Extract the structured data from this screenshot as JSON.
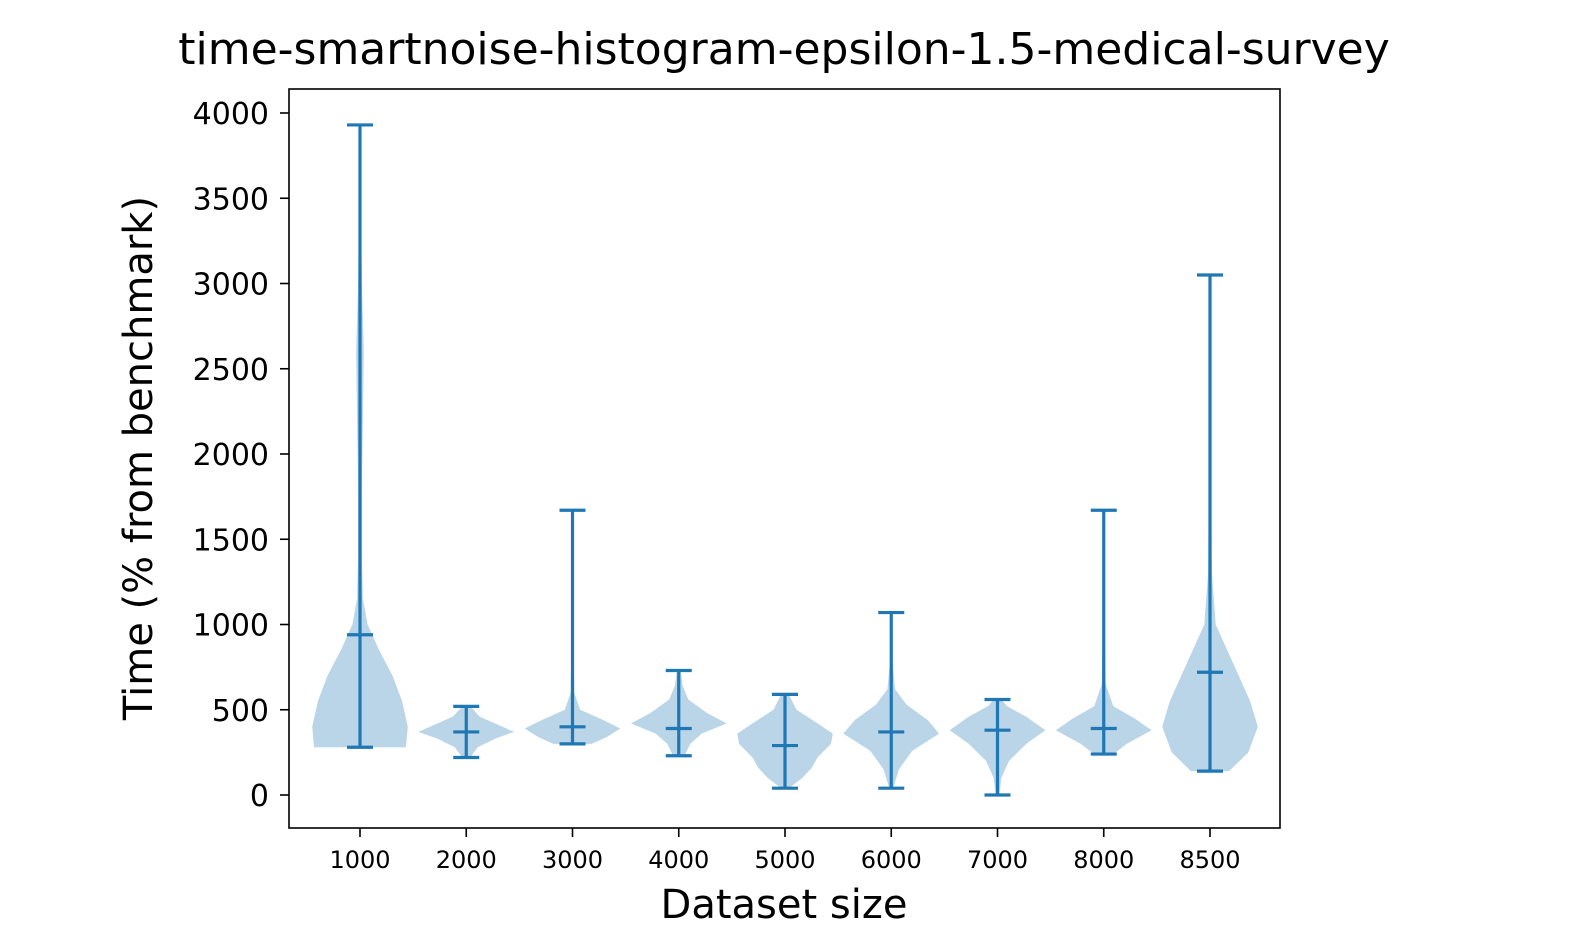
{
  "chart_data": {
    "type": "violin",
    "title": "time-smartnoise-histogram-epsilon-1.5-medical-survey",
    "xlabel": "Dataset size",
    "ylabel": "Time (% from benchmark)",
    "ylim": [
      -190,
      4130
    ],
    "yticks": [
      0,
      500,
      1000,
      1500,
      2000,
      2500,
      3000,
      3500,
      4000
    ],
    "grid": false,
    "colors": {
      "line": "#1f77b4",
      "fill": "#b9d3e8"
    },
    "categories": [
      "1000",
      "2000",
      "3000",
      "4000",
      "5000",
      "6000",
      "7000",
      "8000",
      "8500"
    ],
    "violins": [
      {
        "category": "1000",
        "min": 280,
        "max": 3930,
        "median": 940,
        "density": [
          [
            280,
            0.48
          ],
          [
            400,
            0.5
          ],
          [
            550,
            0.44
          ],
          [
            700,
            0.34
          ],
          [
            850,
            0.2
          ],
          [
            1000,
            0.08
          ],
          [
            1150,
            0.03
          ],
          [
            1400,
            0.02
          ],
          [
            1800,
            0.02
          ],
          [
            2200,
            0.03
          ],
          [
            2600,
            0.04
          ],
          [
            3000,
            0.02
          ],
          [
            3400,
            0.01
          ]
        ]
      },
      {
        "category": "2000",
        "min": 220,
        "max": 520,
        "median": 370,
        "density": [
          [
            220,
            0.04
          ],
          [
            280,
            0.12
          ],
          [
            330,
            0.3
          ],
          [
            370,
            0.5
          ],
          [
            410,
            0.34
          ],
          [
            460,
            0.14
          ],
          [
            520,
            0.04
          ]
        ]
      },
      {
        "category": "3000",
        "min": 300,
        "max": 1670,
        "median": 400,
        "density": [
          [
            300,
            0.2
          ],
          [
            340,
            0.36
          ],
          [
            390,
            0.5
          ],
          [
            440,
            0.32
          ],
          [
            500,
            0.08
          ],
          [
            600,
            0.02
          ],
          [
            900,
            0.01
          ],
          [
            1400,
            0.01
          ],
          [
            1670,
            0.0
          ]
        ]
      },
      {
        "category": "4000",
        "min": 230,
        "max": 730,
        "median": 390,
        "density": [
          [
            230,
            0.06
          ],
          [
            300,
            0.12
          ],
          [
            360,
            0.24
          ],
          [
            420,
            0.5
          ],
          [
            480,
            0.3
          ],
          [
            560,
            0.1
          ],
          [
            640,
            0.04
          ],
          [
            730,
            0.02
          ]
        ]
      },
      {
        "category": "5000",
        "min": 40,
        "max": 590,
        "median": 290,
        "density": [
          [
            40,
            0.04
          ],
          [
            100,
            0.18
          ],
          [
            160,
            0.28
          ],
          [
            220,
            0.34
          ],
          [
            300,
            0.48
          ],
          [
            360,
            0.5
          ],
          [
            420,
            0.34
          ],
          [
            500,
            0.12
          ],
          [
            590,
            0.04
          ]
        ]
      },
      {
        "category": "6000",
        "min": 40,
        "max": 1070,
        "median": 370,
        "density": [
          [
            40,
            0.02
          ],
          [
            150,
            0.08
          ],
          [
            260,
            0.22
          ],
          [
            360,
            0.5
          ],
          [
            440,
            0.38
          ],
          [
            530,
            0.16
          ],
          [
            620,
            0.04
          ],
          [
            800,
            0.01
          ],
          [
            1070,
            0.0
          ]
        ]
      },
      {
        "category": "7000",
        "min": 0,
        "max": 560,
        "median": 380,
        "density": [
          [
            0,
            0.02
          ],
          [
            100,
            0.04
          ],
          [
            200,
            0.12
          ],
          [
            300,
            0.3
          ],
          [
            380,
            0.5
          ],
          [
            460,
            0.3
          ],
          [
            520,
            0.1
          ],
          [
            560,
            0.04
          ]
        ]
      },
      {
        "category": "8000",
        "min": 240,
        "max": 1670,
        "median": 390,
        "density": [
          [
            240,
            0.1
          ],
          [
            300,
            0.24
          ],
          [
            380,
            0.5
          ],
          [
            450,
            0.32
          ],
          [
            520,
            0.1
          ],
          [
            650,
            0.02
          ],
          [
            1000,
            0.01
          ],
          [
            1670,
            0.0
          ]
        ]
      },
      {
        "category": "8500",
        "min": 140,
        "max": 3050,
        "median": 720,
        "density": [
          [
            140,
            0.2
          ],
          [
            250,
            0.4
          ],
          [
            400,
            0.5
          ],
          [
            550,
            0.42
          ],
          [
            700,
            0.3
          ],
          [
            850,
            0.18
          ],
          [
            1000,
            0.06
          ],
          [
            1300,
            0.02
          ],
          [
            2000,
            0.01
          ],
          [
            3050,
            0.0
          ]
        ]
      }
    ]
  }
}
